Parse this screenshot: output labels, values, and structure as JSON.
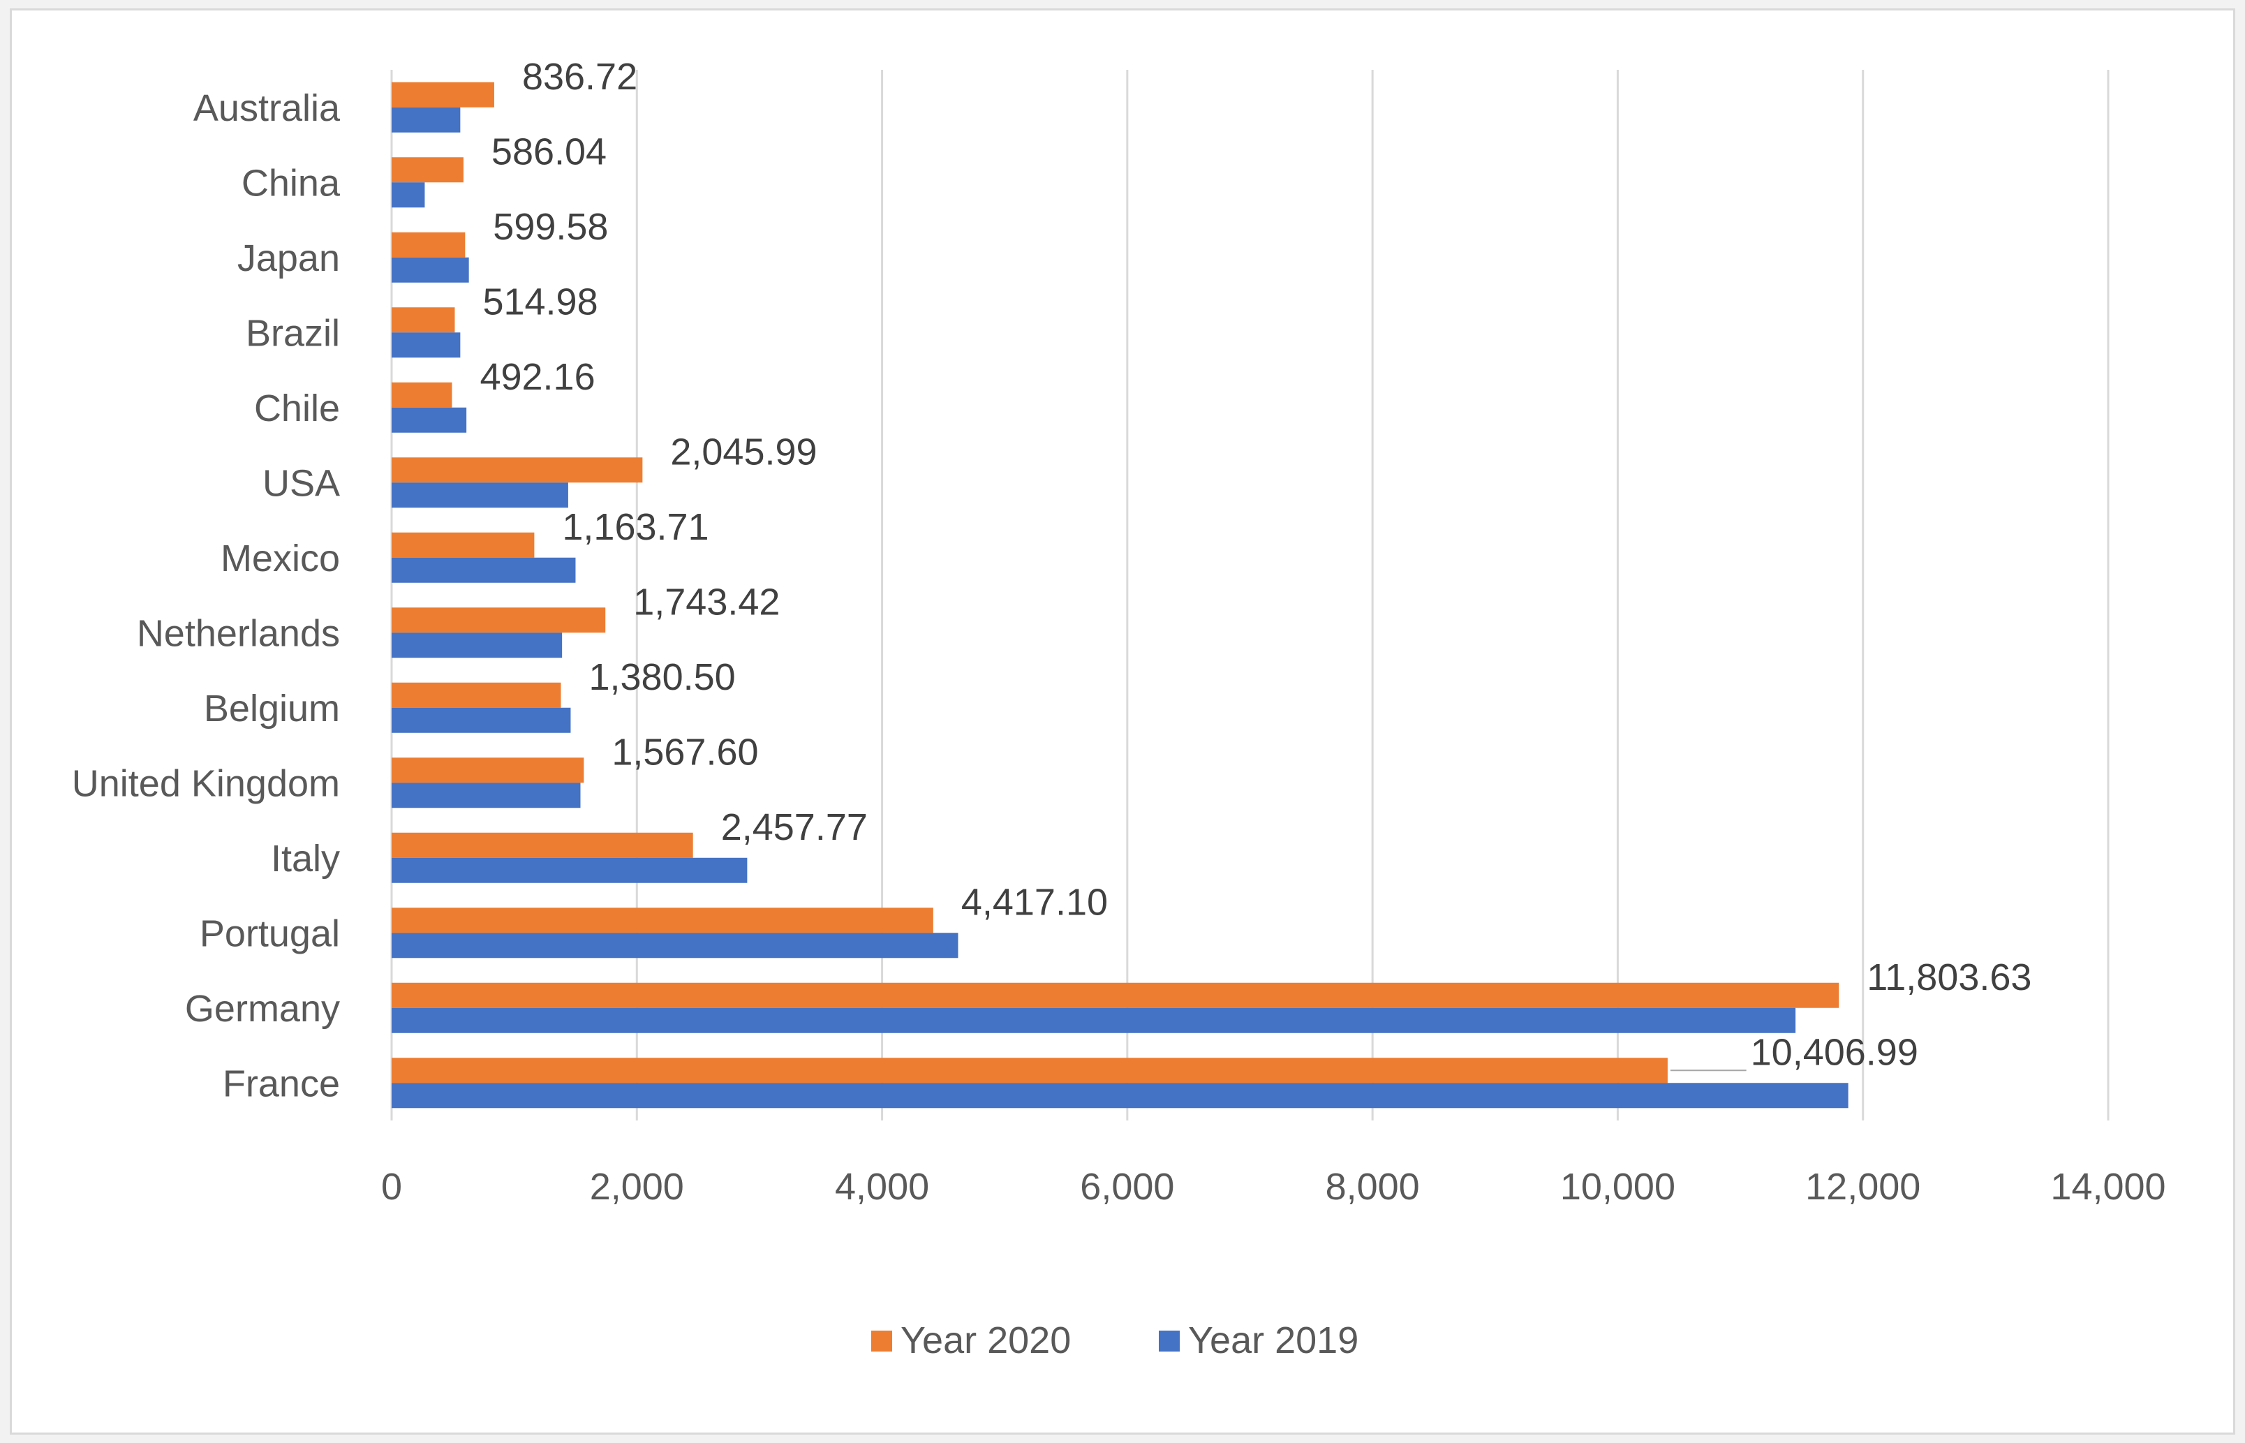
{
  "chart_data": {
    "type": "bar",
    "orientation": "horizontal",
    "title": "",
    "xlabel": "",
    "ylabel": "",
    "xlim": [
      0,
      14000
    ],
    "ticks": [
      "0",
      "2,000",
      "4,000",
      "6,000",
      "8,000",
      "10,000",
      "12,000",
      "14,000"
    ],
    "tick_values": [
      0,
      2000,
      4000,
      6000,
      8000,
      10000,
      12000,
      14000
    ],
    "grid": true,
    "legend_position": "bottom",
    "categories": [
      "Australia",
      "China",
      "Japan",
      "Brazil",
      "Chile",
      "USA",
      "Mexico",
      "Netherlands",
      "Belgium",
      "United Kingdom",
      "Italy",
      "Portugal",
      "Germany",
      "France"
    ],
    "series": [
      {
        "name": "Year 2020",
        "color": "#ed7d31",
        "values": [
          836.72,
          586.04,
          599.58,
          514.98,
          492.16,
          2045.99,
          1163.71,
          1743.42,
          1380.5,
          1567.6,
          2457.77,
          4417.1,
          11803.63,
          10406.99
        ],
        "labels": [
          "836.72",
          "586.04",
          "599.58",
          "514.98",
          "492.16",
          "2,045.99",
          "1,163.71",
          "1,743.42",
          "1,380.50",
          "1,567.60",
          "2,457.77",
          "4,417.10",
          "11,803.63",
          "10,406.99"
        ]
      },
      {
        "name": "Year 2019",
        "color": "#4472c4",
        "values": [
          560,
          270,
          630,
          560,
          610,
          1440,
          1500,
          1390,
          1460,
          1540,
          2900,
          4620,
          11450,
          11880
        ]
      }
    ]
  }
}
